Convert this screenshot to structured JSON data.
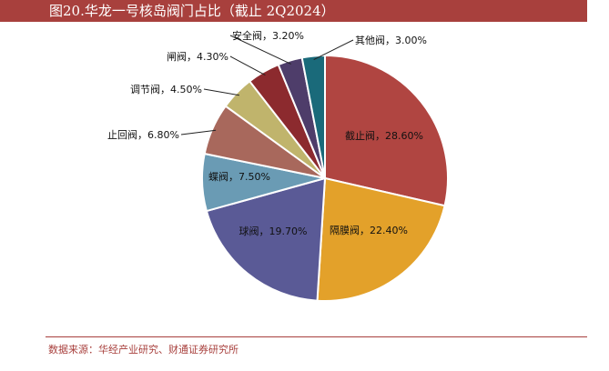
{
  "header": {
    "title": "图20.华龙一号核岛阀门占比（截止 2Q2024）"
  },
  "colors": {
    "title_bar": "#a8403d",
    "source_text": "#a8403d"
  },
  "chart_data": {
    "type": "pie",
    "slices": [
      {
        "label": "截止阀，28.60%",
        "value": 28.6,
        "color": "#b04541"
      },
      {
        "label": "隔膜阀，22.40%",
        "value": 22.4,
        "color": "#e3a12a"
      },
      {
        "label": "球阀，19.70%",
        "value": 19.7,
        "color": "#5a5a96"
      },
      {
        "label": "蝶阀，7.50%",
        "value": 7.5,
        "color": "#6a9bb4"
      },
      {
        "label": "止回阀，6.80%",
        "value": 6.8,
        "color": "#a8685c"
      },
      {
        "label": "调节阀，4.50%",
        "value": 4.5,
        "color": "#c0b46c"
      },
      {
        "label": "闸阀，4.30%",
        "value": 4.3,
        "color": "#8c2a2e"
      },
      {
        "label": "安全阀，3.20%",
        "value": 3.2,
        "color": "#4e3d6a"
      },
      {
        "label": "其他阀，3.00%",
        "value": 3.0,
        "color": "#1a6a7a"
      }
    ]
  },
  "footer": {
    "source": "数据来源：华经产业研究、财通证券研究所"
  }
}
